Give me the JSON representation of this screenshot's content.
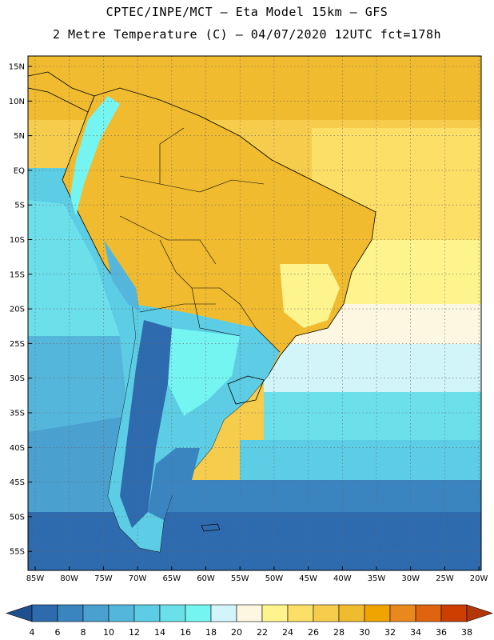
{
  "header": {
    "line1": "CPTEC/INPE/MCT –  Eta Model 15km – GFS",
    "line2": "2 Metre Temperature (C) – 04/07/2020 12UTC fct=178h"
  },
  "axes": {
    "lat_labels": [
      "15N",
      "10N",
      "5N",
      "EQ",
      "5S",
      "10S",
      "15S",
      "20S",
      "25S",
      "30S",
      "35S",
      "40S",
      "45S",
      "50S",
      "55S"
    ],
    "lon_labels": [
      "85W",
      "80W",
      "75W",
      "70W",
      "65W",
      "60W",
      "55W",
      "50W",
      "45W",
      "40W",
      "35W",
      "30W",
      "25W",
      "20W"
    ]
  },
  "colorbar": {
    "ticks": [
      "4",
      "6",
      "8",
      "10",
      "12",
      "14",
      "16",
      "18",
      "20",
      "22",
      "24",
      "26",
      "28",
      "30",
      "32",
      "34",
      "36",
      "38"
    ],
    "colors": [
      "#2e6bae",
      "#3a85bf",
      "#4aa0cf",
      "#55b6dc",
      "#5ccde4",
      "#6ce0ea",
      "#75f5f2",
      "#d2f5fa",
      "#fdf7e1",
      "#fef48d",
      "#fcdf67",
      "#f6cc4d",
      "#f0bb2f",
      "#efa400",
      "#e9881c",
      "#e06310",
      "#cc3f00"
    ],
    "below_color": "#1f4f8f",
    "above_color": "#b3370a"
  }
}
